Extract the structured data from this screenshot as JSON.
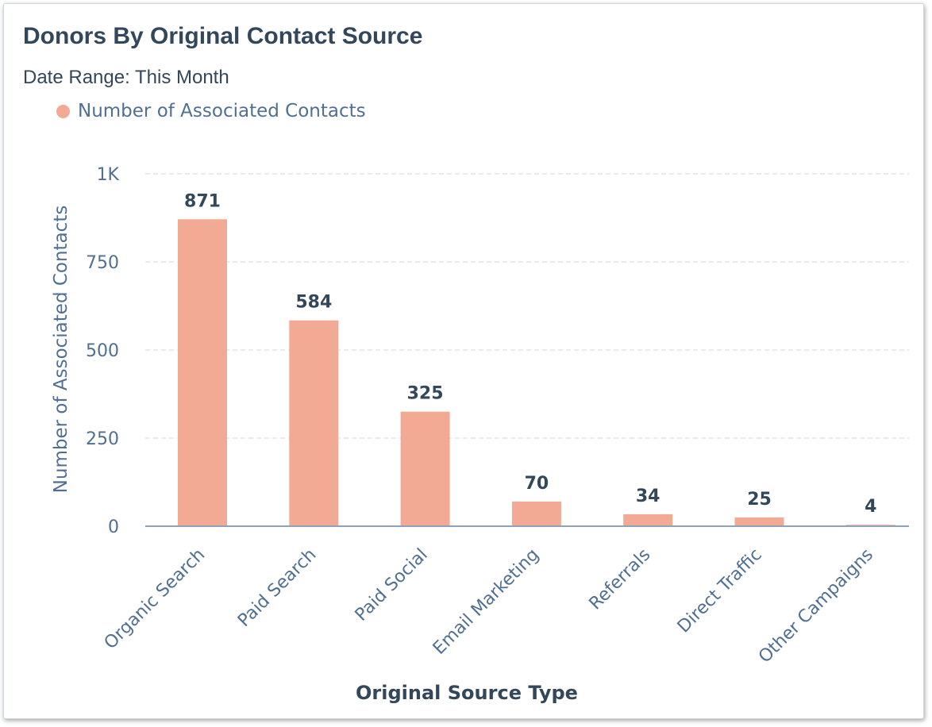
{
  "card": {
    "title": "Donors By Original Contact Source",
    "subtitle": "Date Range: This Month"
  },
  "colors": {
    "bar": "#f2aa94",
    "text": "#33475b",
    "axis_text": "#516f90",
    "grid": "#dfe3eb",
    "baseline": "#8fa2b8"
  },
  "chart_data": {
    "type": "bar",
    "categories": [
      "Organic Search",
      "Paid Search",
      "Paid Social",
      "Email Marketing",
      "Referrals",
      "Direct Traffic",
      "Other Campaigns"
    ],
    "series": [
      {
        "name": "Number of Associated Contacts",
        "values": [
          871,
          584,
          325,
          70,
          34,
          25,
          4
        ],
        "data_labels": [
          "871",
          "584",
          "325",
          "70",
          "34",
          "25",
          "4"
        ]
      }
    ],
    "xlabel": "Original Source Type",
    "ylabel": "Number of Associated Contacts",
    "ylim": [
      0,
      1000
    ],
    "yticks": [
      {
        "value": 0,
        "label": "0"
      },
      {
        "value": 250,
        "label": "250"
      },
      {
        "value": 500,
        "label": "500"
      },
      {
        "value": 750,
        "label": "750"
      },
      {
        "value": 1000,
        "label": "1K"
      }
    ],
    "grid": true,
    "legend_position": "top-left"
  }
}
